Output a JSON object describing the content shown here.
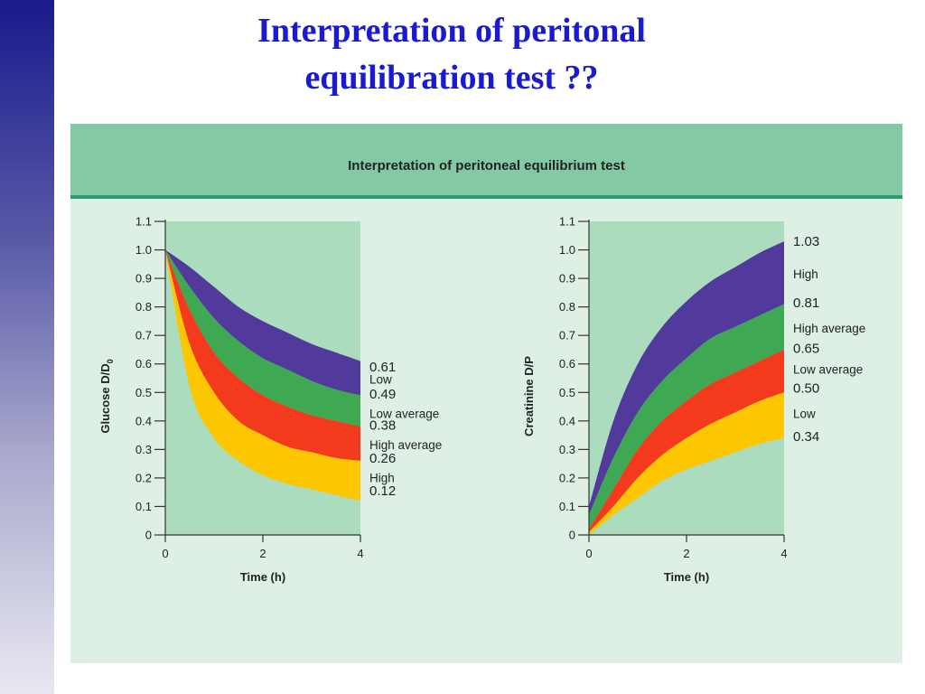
{
  "slide": {
    "title_line1": "Interpretation of peritonal",
    "title_line2": "equilibration test  ??"
  },
  "figure": {
    "title": "Interpretation of peritoneal equilibrium test"
  },
  "colors": {
    "sidebar_top": "#1a1a8c",
    "title_text": "#1a1ad0",
    "panel_bg": "#ddf0e3",
    "header_bg": "#83caa4",
    "plot_bg": "#abdcbd",
    "high": "#523a9c",
    "high_average": "#3ea853",
    "low_average": "#f43a1c",
    "low": "#fcc600"
  },
  "chart_data": [
    {
      "type": "area",
      "ylabel_main": "Glucose D/D",
      "ylabel_sub": "0",
      "xlabel": "Time (h)",
      "xlim": [
        0,
        4
      ],
      "ylim": [
        0,
        1.1
      ],
      "x_ticks": [
        "0",
        "2",
        "4"
      ],
      "y_ticks": [
        "0",
        "0.1",
        "0.2",
        "0.3",
        "0.4",
        "0.5",
        "0.6",
        "0.7",
        "0.8",
        "0.9",
        "1.0",
        "1.1"
      ],
      "x": [
        0,
        0.5,
        1,
        1.5,
        2,
        2.5,
        3,
        3.5,
        4
      ],
      "bands": [
        {
          "name": "Low",
          "color_key": "high",
          "upper": [
            1.0,
            0.94,
            0.87,
            0.8,
            0.75,
            0.71,
            0.67,
            0.64,
            0.61
          ],
          "lower": [
            1.0,
            0.87,
            0.76,
            0.68,
            0.62,
            0.58,
            0.54,
            0.51,
            0.49
          ]
        },
        {
          "name": "Low average",
          "color_key": "high_average",
          "upper": [
            1.0,
            0.87,
            0.76,
            0.68,
            0.62,
            0.58,
            0.54,
            0.51,
            0.49
          ],
          "lower": [
            1.0,
            0.79,
            0.64,
            0.55,
            0.49,
            0.45,
            0.42,
            0.4,
            0.38
          ]
        },
        {
          "name": "High average",
          "color_key": "low_average",
          "upper": [
            1.0,
            0.79,
            0.64,
            0.55,
            0.49,
            0.45,
            0.42,
            0.4,
            0.38
          ],
          "lower": [
            1.0,
            0.67,
            0.5,
            0.4,
            0.35,
            0.31,
            0.29,
            0.27,
            0.26
          ]
        },
        {
          "name": "High",
          "color_key": "low",
          "upper": [
            1.0,
            0.67,
            0.5,
            0.4,
            0.35,
            0.31,
            0.29,
            0.27,
            0.26
          ],
          "lower": [
            1.0,
            0.52,
            0.34,
            0.26,
            0.21,
            0.18,
            0.16,
            0.14,
            0.12
          ]
        }
      ],
      "right_labels": [
        {
          "text": "0.61",
          "y": 0.59,
          "size": "big"
        },
        {
          "text": "Low",
          "y": 0.545,
          "size": "small"
        },
        {
          "text": "0.49",
          "y": 0.495,
          "size": "big"
        },
        {
          "text": "Low average",
          "y": 0.425,
          "size": "small"
        },
        {
          "text": "0.38",
          "y": 0.385,
          "size": "big"
        },
        {
          "text": "High average",
          "y": 0.315,
          "size": "small"
        },
        {
          "text": "0.26",
          "y": 0.27,
          "size": "big"
        },
        {
          "text": "High",
          "y": 0.2,
          "size": "small"
        },
        {
          "text": "0.12",
          "y": 0.155,
          "size": "big"
        }
      ]
    },
    {
      "type": "area",
      "ylabel_main": "Creatinine D/P",
      "ylabel_sub": "",
      "xlabel": "Time (h)",
      "xlim": [
        0,
        4
      ],
      "ylim": [
        0,
        1.1
      ],
      "x_ticks": [
        "0",
        "2",
        "4"
      ],
      "y_ticks": [
        "0",
        "0.1",
        "0.2",
        "0.3",
        "0.4",
        "0.5",
        "0.6",
        "0.7",
        "0.8",
        "0.9",
        "1.0",
        "1.1"
      ],
      "x": [
        0,
        0.5,
        1,
        1.5,
        2,
        2.5,
        3,
        3.5,
        4
      ],
      "bands": [
        {
          "name": "High",
          "color_key": "high",
          "upper": [
            0.1,
            0.4,
            0.6,
            0.73,
            0.82,
            0.89,
            0.94,
            0.99,
            1.03
          ],
          "lower": [
            0.07,
            0.27,
            0.43,
            0.54,
            0.62,
            0.69,
            0.73,
            0.77,
            0.81
          ]
        },
        {
          "name": "High average",
          "color_key": "high_average",
          "upper": [
            0.07,
            0.27,
            0.43,
            0.54,
            0.62,
            0.69,
            0.73,
            0.77,
            0.81
          ],
          "lower": [
            0.02,
            0.16,
            0.3,
            0.4,
            0.47,
            0.53,
            0.57,
            0.61,
            0.65
          ]
        },
        {
          "name": "Low average",
          "color_key": "low_average",
          "upper": [
            0.02,
            0.16,
            0.3,
            0.4,
            0.47,
            0.53,
            0.57,
            0.61,
            0.65
          ],
          "lower": [
            0.01,
            0.1,
            0.2,
            0.28,
            0.34,
            0.39,
            0.43,
            0.47,
            0.5
          ]
        },
        {
          "name": "Low",
          "color_key": "low",
          "upper": [
            0.01,
            0.1,
            0.2,
            0.28,
            0.34,
            0.39,
            0.43,
            0.47,
            0.5
          ],
          "lower": [
            0.0,
            0.07,
            0.13,
            0.19,
            0.23,
            0.26,
            0.29,
            0.32,
            0.34
          ]
        }
      ],
      "right_labels": [
        {
          "text": "1.03",
          "y": 1.03,
          "size": "big"
        },
        {
          "text": "High",
          "y": 0.915,
          "size": "small"
        },
        {
          "text": "0.81",
          "y": 0.815,
          "size": "big"
        },
        {
          "text": "High average",
          "y": 0.725,
          "size": "small"
        },
        {
          "text": "0.65",
          "y": 0.655,
          "size": "big"
        },
        {
          "text": "Low average",
          "y": 0.58,
          "size": "small"
        },
        {
          "text": "0.50",
          "y": 0.515,
          "size": "big"
        },
        {
          "text": "Low",
          "y": 0.425,
          "size": "small"
        },
        {
          "text": "0.34",
          "y": 0.345,
          "size": "big"
        }
      ]
    }
  ]
}
